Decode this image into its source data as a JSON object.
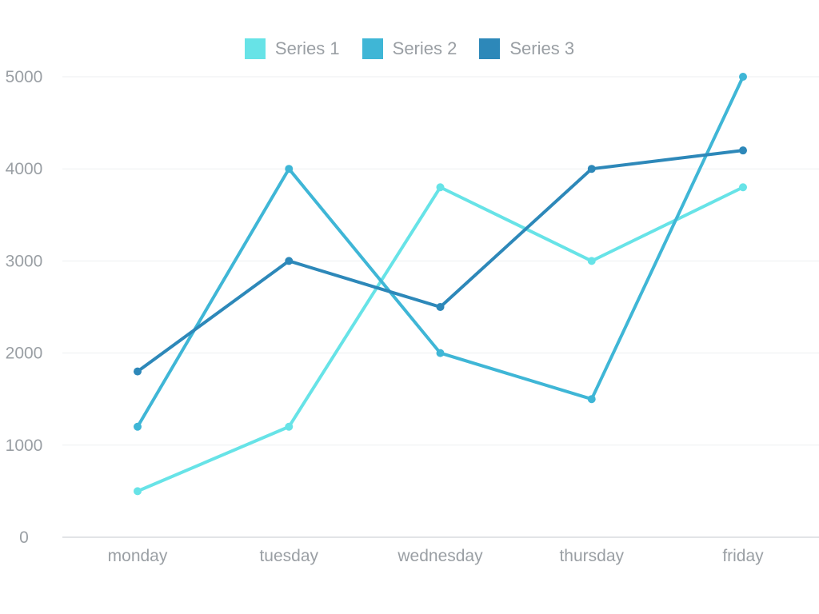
{
  "chart_data": {
    "type": "line",
    "categories": [
      "monday",
      "tuesday",
      "wednesday",
      "thursday",
      "friday"
    ],
    "series": [
      {
        "name": "Series 1",
        "color": "#67e3e7",
        "values": [
          500,
          1200,
          3800,
          3000,
          3800
        ]
      },
      {
        "name": "Series 2",
        "color": "#3fb6d6",
        "values": [
          1200,
          4000,
          2000,
          1500,
          5000
        ]
      },
      {
        "name": "Series 3",
        "color": "#2d88b9",
        "values": [
          1800,
          3000,
          2500,
          4000,
          4200
        ]
      }
    ],
    "y_ticks": [
      "0",
      "1000",
      "2000",
      "3000",
      "4000",
      "5000"
    ],
    "ylim": [
      0,
      5000
    ],
    "grid": true,
    "legend_position": "top-center"
  }
}
